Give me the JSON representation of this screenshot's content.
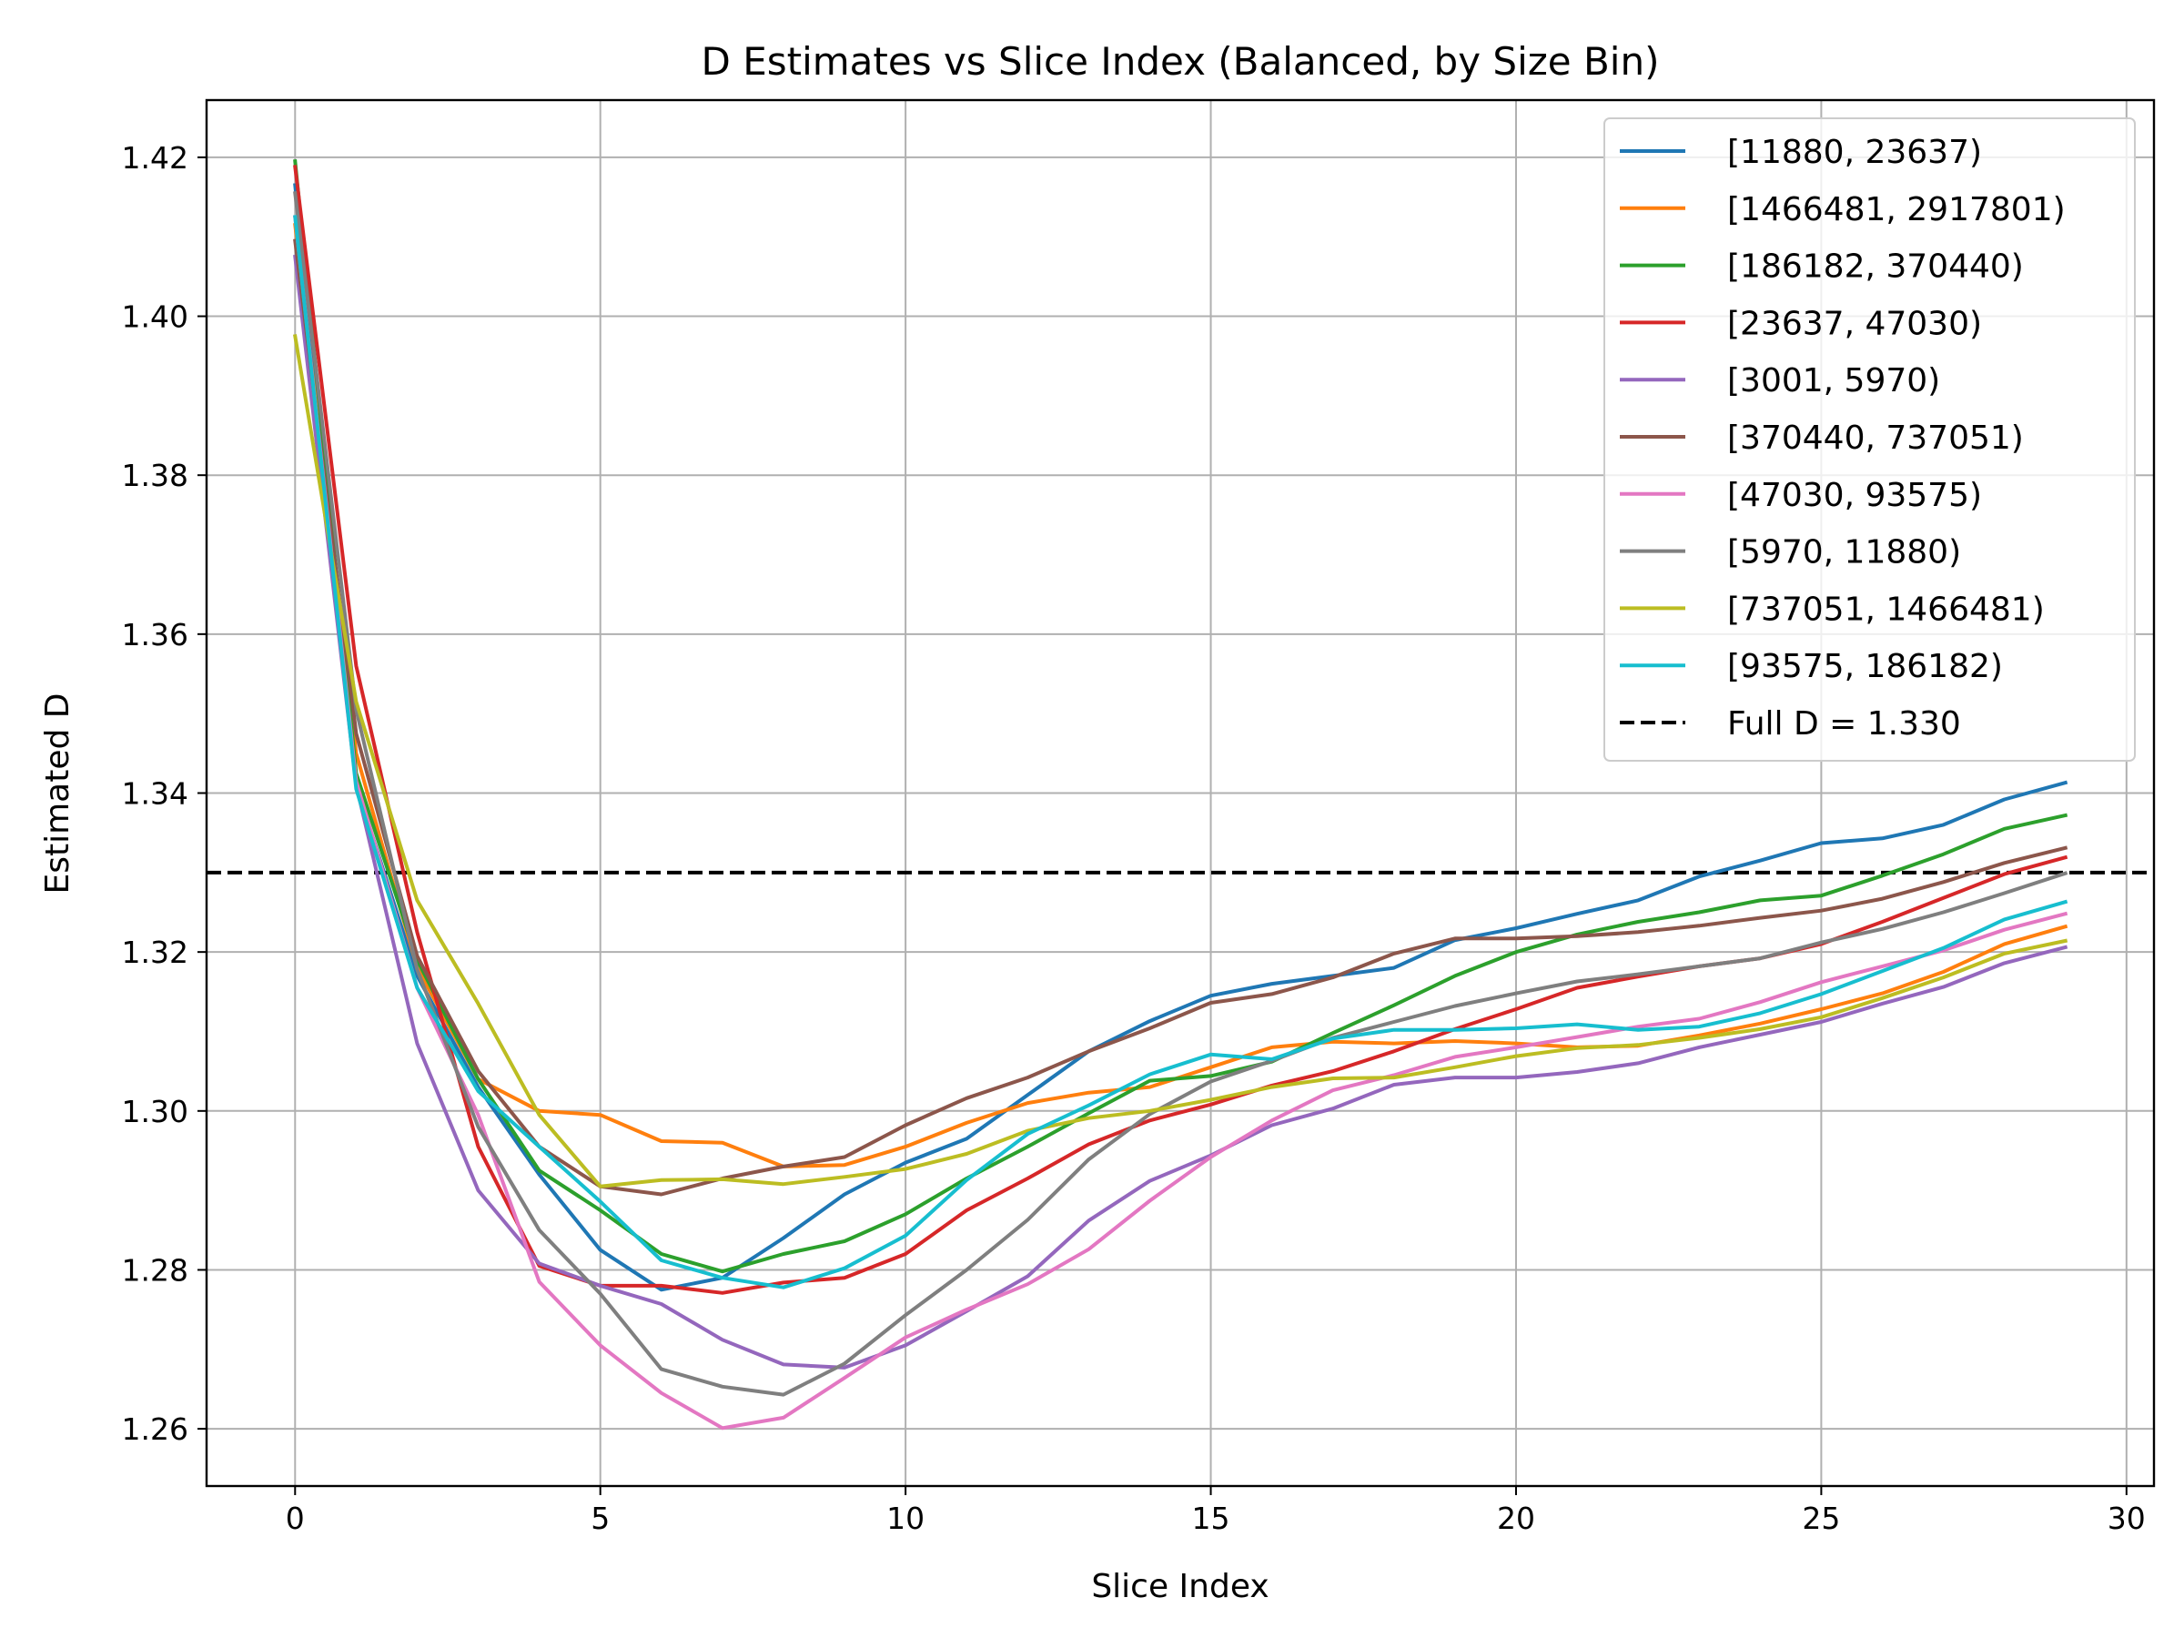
{
  "chart_data": {
    "type": "line",
    "title": "D Estimates vs Slice Index (Balanced, by Size Bin)",
    "xlabel": "Slice Index",
    "ylabel": "Estimated D",
    "xlim": [
      -1.45,
      30.45
    ],
    "ylim": [
      1.2528,
      1.4272
    ],
    "xticks": [
      0,
      5,
      10,
      15,
      20,
      25,
      30
    ],
    "yticks": [
      1.26,
      1.28,
      1.3,
      1.32,
      1.34,
      1.36,
      1.38,
      1.4,
      1.42
    ],
    "ytick_labels": [
      "1.26",
      "1.28",
      "1.30",
      "1.32",
      "1.34",
      "1.36",
      "1.38",
      "1.40",
      "1.42"
    ],
    "grid": true,
    "legend_position": "top-right",
    "x": [
      0,
      1,
      2,
      3,
      4,
      5,
      6,
      7,
      8,
      9,
      10,
      11,
      12,
      13,
      14,
      15,
      16,
      17,
      18,
      19,
      20,
      21,
      22,
      23,
      24,
      25,
      26,
      27,
      28,
      29
    ],
    "series": [
      {
        "name": "[11880, 23637)",
        "color": "#1f77b4",
        "values": [
          1.4165,
          1.341,
          1.317,
          1.303,
          1.292,
          1.2825,
          1.2775,
          1.279,
          1.284,
          1.2895,
          1.2935,
          1.2965,
          1.302,
          1.3075,
          1.3113,
          1.3145,
          1.316,
          1.317,
          1.318,
          1.3215,
          1.323,
          1.3248,
          1.3265,
          1.3295,
          1.3315,
          1.3337,
          1.3343,
          1.336,
          1.3392,
          1.3413
        ]
      },
      {
        "name": "[1466481, 2917801)",
        "color": "#ff7f0e",
        "values": [
          1.4115,
          1.345,
          1.318,
          1.304,
          1.3,
          1.2995,
          1.2962,
          1.296,
          1.293,
          1.2932,
          1.2955,
          1.2985,
          1.301,
          1.3023,
          1.303,
          1.3055,
          1.308,
          1.3087,
          1.3085,
          1.3088,
          1.3085,
          1.308,
          1.3082,
          1.3095,
          1.311,
          1.3128,
          1.3148,
          1.3175,
          1.321,
          1.3232
        ]
      },
      {
        "name": "[186182, 370440)",
        "color": "#2ca02c",
        "values": [
          1.4195,
          1.3425,
          1.319,
          1.304,
          1.2925,
          1.2875,
          1.282,
          1.2798,
          1.282,
          1.2836,
          1.287,
          1.2915,
          1.2955,
          1.2997,
          1.3038,
          1.3044,
          1.3062,
          1.3098,
          1.3133,
          1.317,
          1.32,
          1.3222,
          1.3238,
          1.325,
          1.3265,
          1.3271,
          1.3296,
          1.3323,
          1.3355,
          1.3372
        ]
      },
      {
        "name": "[23637, 47030)",
        "color": "#d62728",
        "values": [
          1.4188,
          1.356,
          1.3225,
          1.2955,
          1.2805,
          1.278,
          1.278,
          1.2771,
          1.2784,
          1.279,
          1.282,
          1.2875,
          1.2915,
          1.2958,
          1.2988,
          1.3008,
          1.3032,
          1.305,
          1.3075,
          1.3103,
          1.3128,
          1.3155,
          1.3169,
          1.3182,
          1.3192,
          1.321,
          1.3238,
          1.3268,
          1.3298,
          1.3319
        ]
      },
      {
        "name": "[3001, 5970)",
        "color": "#9467bd",
        "values": [
          1.4075,
          1.341,
          1.3085,
          1.29,
          1.2808,
          1.278,
          1.2757,
          1.2712,
          1.2681,
          1.2677,
          1.2705,
          1.2748,
          1.2792,
          1.2862,
          1.2912,
          1.2944,
          1.2982,
          1.3003,
          1.3033,
          1.3042,
          1.3042,
          1.3049,
          1.306,
          1.308,
          1.3096,
          1.3112,
          1.3135,
          1.3156,
          1.3186,
          1.3206
        ]
      },
      {
        "name": "[370440, 737051)",
        "color": "#8c564b",
        "values": [
          1.4095,
          1.3475,
          1.3195,
          1.305,
          1.2955,
          1.2905,
          1.2895,
          1.2915,
          1.293,
          1.2942,
          1.2982,
          1.3016,
          1.3042,
          1.3075,
          1.3104,
          1.3136,
          1.3147,
          1.3168,
          1.3198,
          1.3217,
          1.3217,
          1.322,
          1.3225,
          1.3233,
          1.3243,
          1.3252,
          1.3267,
          1.3288,
          1.3312,
          1.3331
        ]
      },
      {
        "name": "[47030, 93575)",
        "color": "#e377c2",
        "values": [
          1.4125,
          1.3415,
          1.3155,
          1.2995,
          1.2785,
          1.2705,
          1.2645,
          1.2601,
          1.2614,
          1.2664,
          1.2715,
          1.275,
          1.2782,
          1.2826,
          1.2887,
          1.2942,
          1.2988,
          1.3026,
          1.3045,
          1.3068,
          1.308,
          1.3093,
          1.3106,
          1.3116,
          1.3137,
          1.3162,
          1.3182,
          1.3202,
          1.3228,
          1.3248
        ]
      },
      {
        "name": "[5970, 11880)",
        "color": "#7f7f7f",
        "values": [
          1.4155,
          1.3505,
          1.3178,
          1.298,
          1.285,
          1.277,
          1.2675,
          1.2653,
          1.2643,
          1.2682,
          1.2743,
          1.28,
          1.2863,
          1.2939,
          1.2996,
          1.3037,
          1.3063,
          1.3092,
          1.3112,
          1.3132,
          1.3148,
          1.3163,
          1.3172,
          1.3182,
          1.3192,
          1.3212,
          1.3229,
          1.325,
          1.3274,
          1.3299
        ]
      },
      {
        "name": "[737051, 1466481)",
        "color": "#bcbd22",
        "values": [
          1.3975,
          1.3515,
          1.3265,
          1.3135,
          1.2995,
          1.2905,
          1.2913,
          1.2914,
          1.2908,
          1.2917,
          1.2927,
          1.2946,
          1.2975,
          1.2991,
          1.3,
          1.3014,
          1.303,
          1.3041,
          1.3042,
          1.3055,
          1.3069,
          1.3079,
          1.3083,
          1.3092,
          1.3103,
          1.3118,
          1.3142,
          1.3168,
          1.3198,
          1.3214
        ]
      },
      {
        "name": "[93575, 186182)",
        "color": "#17becf",
        "values": [
          1.4125,
          1.3405,
          1.3155,
          1.3025,
          1.2955,
          1.2886,
          1.2812,
          1.279,
          1.2778,
          1.2802,
          1.2843,
          1.2913,
          1.2971,
          1.3007,
          1.3046,
          1.3071,
          1.3065,
          1.3091,
          1.3102,
          1.3102,
          1.3104,
          1.3109,
          1.3102,
          1.3106,
          1.3123,
          1.3147,
          1.3176,
          1.3205,
          1.3241,
          1.3263
        ]
      }
    ],
    "reference_line": {
      "label": "Full D = 1.330",
      "value": 1.33,
      "color": "#000000",
      "style": "dashed"
    }
  }
}
